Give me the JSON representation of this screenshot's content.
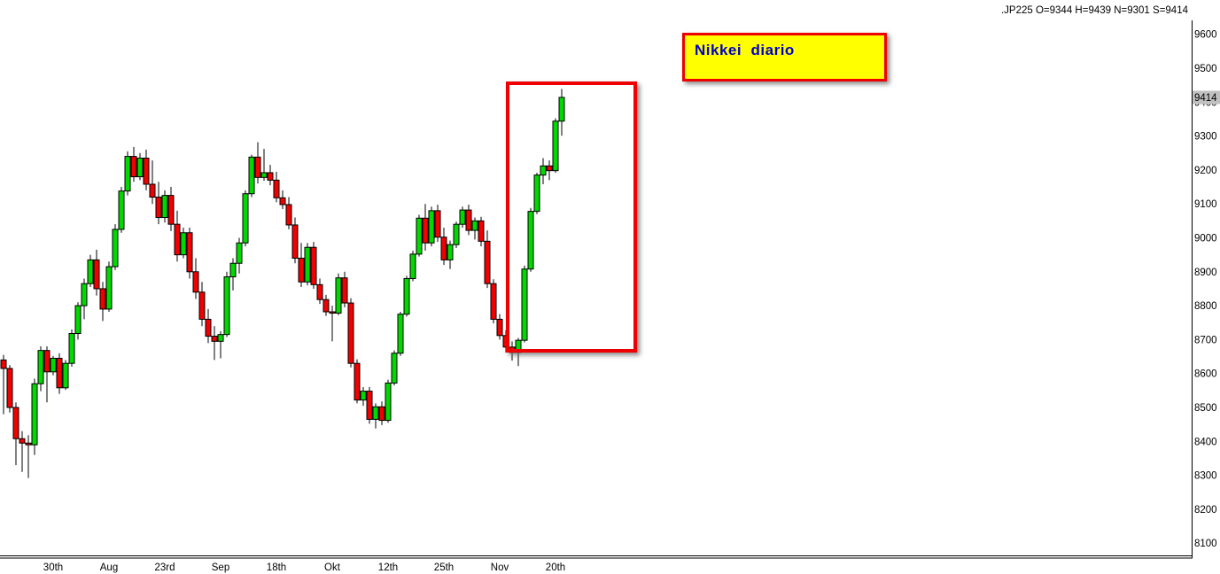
{
  "header": {
    "instrument_line": ".JP225 O=9344 H=9439 N=9301 S=9414"
  },
  "annotations": {
    "label_text": "Nikkei  diario",
    "label_bg": "#ffff00",
    "label_border": "#ee0000",
    "label_color": "#0000cc",
    "highlight_box_border": "#ee0000"
  },
  "price_tag": {
    "value": "9414",
    "bg": "#c0c0c0",
    "hidden_label_behind": "9400"
  },
  "chart_data": {
    "type": "candlestick",
    "title": "Nikkei diario",
    "instrument": ".JP225",
    "timeframe": "diario",
    "last_bar": {
      "open": 9344,
      "high": 9439,
      "low": 9301,
      "close": 9414
    },
    "colors": {
      "up": "#00d900",
      "down": "#f20000",
      "outline": "#000000",
      "wick": "#000000"
    },
    "grid": false,
    "y_axis": {
      "side": "right",
      "ticks": [
        9600,
        9500,
        9400,
        9300,
        9200,
        9100,
        9000,
        8900,
        8800,
        8700,
        8600,
        8500,
        8400,
        8300,
        8200,
        8100
      ],
      "ylim": [
        8050,
        9660
      ]
    },
    "x_axis": {
      "tick_labels": [
        "30th",
        "Aug",
        "23rd",
        "Sep",
        "18th",
        "Okt",
        "12th",
        "25th",
        "Nov",
        "20th"
      ],
      "tick_candle_indices": [
        8,
        17,
        26,
        35,
        44,
        53,
        62,
        71,
        80,
        89
      ]
    },
    "candles_format": [
      "open",
      "high",
      "low",
      "close"
    ],
    "candles": [
      [
        8640,
        8655,
        8480,
        8615
      ],
      [
        8615,
        8625,
        8485,
        8500
      ],
      [
        8500,
        8515,
        8330,
        8408
      ],
      [
        8408,
        8430,
        8310,
        8395
      ],
      [
        8395,
        8418,
        8292,
        8390
      ],
      [
        8390,
        8585,
        8360,
        8570
      ],
      [
        8570,
        8680,
        8548,
        8668
      ],
      [
        8668,
        8680,
        8515,
        8605
      ],
      [
        8605,
        8652,
        8595,
        8645
      ],
      [
        8645,
        8660,
        8540,
        8558
      ],
      [
        8558,
        8640,
        8552,
        8630
      ],
      [
        8630,
        8730,
        8620,
        8718
      ],
      [
        8718,
        8810,
        8700,
        8800
      ],
      [
        8800,
        8880,
        8760,
        8865
      ],
      [
        8865,
        8950,
        8855,
        8935
      ],
      [
        8935,
        8965,
        8830,
        8850
      ],
      [
        8850,
        8870,
        8755,
        8790
      ],
      [
        8790,
        8930,
        8782,
        8915
      ],
      [
        8915,
        9040,
        8905,
        9025
      ],
      [
        9025,
        9150,
        9015,
        9138
      ],
      [
        9138,
        9255,
        9125,
        9240
      ],
      [
        9240,
        9268,
        9165,
        9180
      ],
      [
        9180,
        9250,
        9170,
        9235
      ],
      [
        9235,
        9260,
        9140,
        9158
      ],
      [
        9158,
        9228,
        9100,
        9120
      ],
      [
        9120,
        9165,
        9040,
        9060
      ],
      [
        9060,
        9140,
        9045,
        9125
      ],
      [
        9125,
        9150,
        9020,
        9040
      ],
      [
        9040,
        9080,
        8930,
        8950
      ],
      [
        8950,
        9030,
        8940,
        9015
      ],
      [
        9015,
        9030,
        8880,
        8900
      ],
      [
        8900,
        8940,
        8820,
        8840
      ],
      [
        8840,
        8870,
        8740,
        8760
      ],
      [
        8760,
        8790,
        8690,
        8710
      ],
      [
        8710,
        8740,
        8640,
        8695
      ],
      [
        8695,
        8725,
        8645,
        8715
      ],
      [
        8715,
        8900,
        8708,
        8885
      ],
      [
        8885,
        8940,
        8845,
        8925
      ],
      [
        8925,
        9000,
        8895,
        8985
      ],
      [
        8985,
        9140,
        8975,
        9130
      ],
      [
        9130,
        9245,
        9120,
        9238
      ],
      [
        9238,
        9282,
        9160,
        9178
      ],
      [
        9178,
        9262,
        9168,
        9192
      ],
      [
        9192,
        9215,
        9155,
        9170
      ],
      [
        9170,
        9195,
        9105,
        9118
      ],
      [
        9118,
        9140,
        9085,
        9098
      ],
      [
        9098,
        9120,
        9025,
        9038
      ],
      [
        9038,
        9060,
        8925,
        8940
      ],
      [
        8940,
        8985,
        8855,
        8870
      ],
      [
        8870,
        8985,
        8860,
        8972
      ],
      [
        8972,
        8988,
        8850,
        8862
      ],
      [
        8862,
        8880,
        8805,
        8818
      ],
      [
        8818,
        8832,
        8770,
        8782
      ],
      [
        8782,
        8800,
        8695,
        8778
      ],
      [
        8778,
        8895,
        8772,
        8882
      ],
      [
        8882,
        8900,
        8795,
        8808
      ],
      [
        8808,
        8822,
        8618,
        8630
      ],
      [
        8630,
        8642,
        8512,
        8522
      ],
      [
        8522,
        8560,
        8505,
        8548
      ],
      [
        8548,
        8560,
        8452,
        8465
      ],
      [
        8465,
        8512,
        8438,
        8502
      ],
      [
        8502,
        8518,
        8448,
        8462
      ],
      [
        8462,
        8582,
        8455,
        8572
      ],
      [
        8572,
        8668,
        8565,
        8660
      ],
      [
        8660,
        8782,
        8652,
        8775
      ],
      [
        8775,
        8888,
        8768,
        8880
      ],
      [
        8880,
        8962,
        8872,
        8952
      ],
      [
        8952,
        9068,
        8945,
        9058
      ],
      [
        9058,
        9100,
        8962,
        8985
      ],
      [
        8985,
        9092,
        8975,
        9080
      ],
      [
        9080,
        9098,
        8988,
        9002
      ],
      [
        9002,
        9030,
        8920,
        8935
      ],
      [
        8935,
        8992,
        8908,
        8980
      ],
      [
        8980,
        9048,
        8970,
        9040
      ],
      [
        9040,
        9092,
        9030,
        9082
      ],
      [
        9082,
        9098,
        9008,
        9022
      ],
      [
        9022,
        9060,
        8995,
        9050
      ],
      [
        9050,
        9062,
        8975,
        8990
      ],
      [
        8990,
        9022,
        8852,
        8865
      ],
      [
        8865,
        8878,
        8748,
        8760
      ],
      [
        8760,
        8775,
        8700,
        8712
      ],
      [
        8712,
        8728,
        8662,
        8678
      ],
      [
        8678,
        8695,
        8638,
        8662
      ],
      [
        8662,
        8705,
        8622,
        8698
      ],
      [
        8698,
        8918,
        8692,
        8908
      ],
      [
        8908,
        9088,
        8900,
        9078
      ],
      [
        9078,
        9192,
        9070,
        9185
      ],
      [
        9185,
        9235,
        9158,
        9212
      ],
      [
        9212,
        9228,
        9170,
        9198
      ],
      [
        9198,
        9352,
        9192,
        9344
      ],
      [
        9344,
        9439,
        9301,
        9414
      ]
    ]
  }
}
